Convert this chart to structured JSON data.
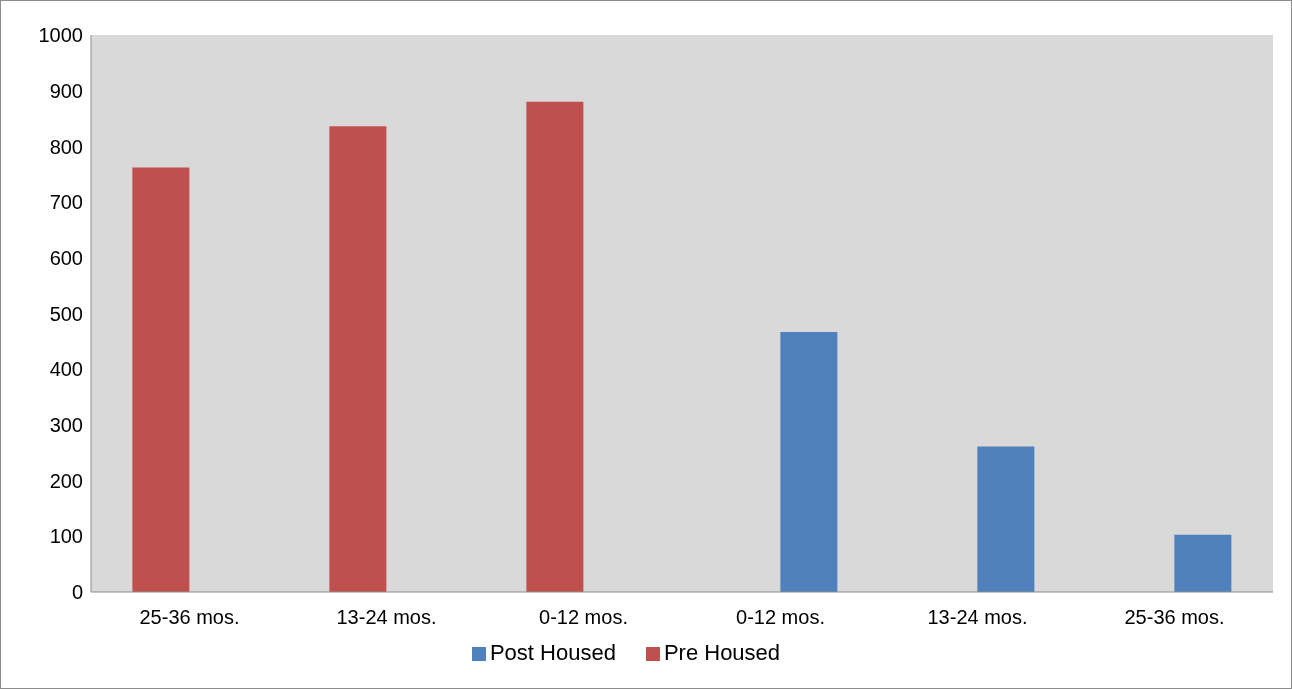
{
  "chart_data": {
    "type": "bar",
    "categories": [
      "25-36 mos.",
      "13-24 mos.",
      "0-12 mos.",
      "0-12 mos.",
      "13-24 mos.",
      "25-36 mos."
    ],
    "series": [
      {
        "name": "Pre Housed",
        "color": "#c0504d",
        "values": [
          762,
          836,
          880,
          null,
          null,
          null
        ]
      },
      {
        "name": "Post Housed",
        "color": "#4f81bd",
        "values": [
          null,
          null,
          null,
          467,
          261,
          103
        ]
      }
    ],
    "ylim": [
      0,
      1000
    ],
    "yticks": [
      0,
      100,
      200,
      300,
      400,
      500,
      600,
      700,
      800,
      900,
      1000
    ],
    "legend": "bottom"
  }
}
